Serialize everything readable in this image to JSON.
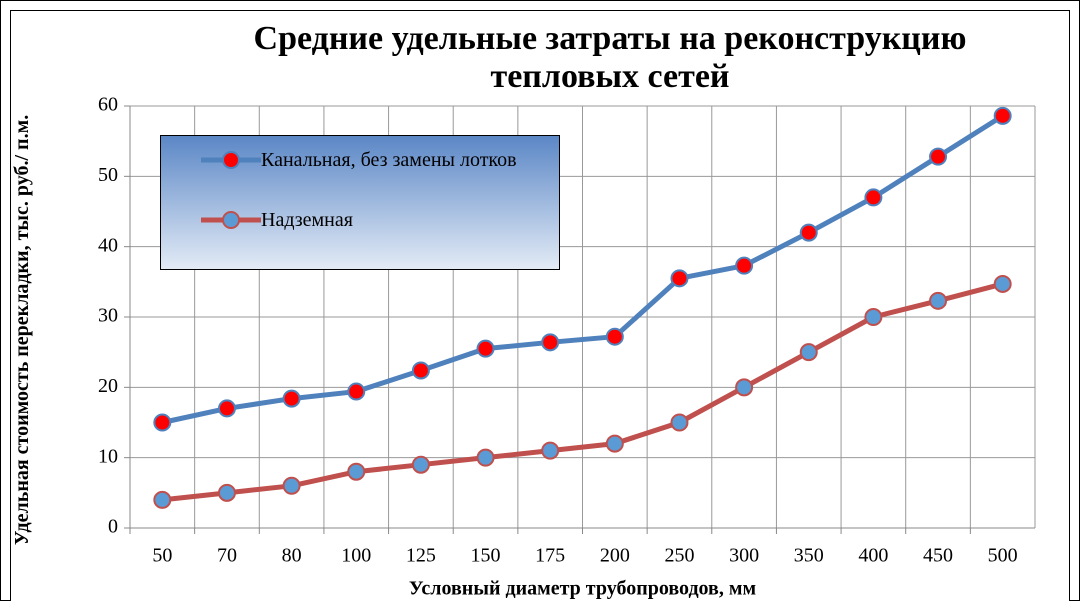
{
  "chart_data": {
    "type": "line",
    "title": "Средние удельные затраты на реконструкцию тепловых сетей",
    "x_label": "Условный диаметр трубопроводов, мм",
    "y_label": "Удельная стоимость перекладки, тыс. руб./ п.м.",
    "categories": [
      "50",
      "70",
      "80",
      "100",
      "125",
      "150",
      "175",
      "200",
      "250",
      "300",
      "350",
      "400",
      "450",
      "500"
    ],
    "series": [
      {
        "name": "Канальная, без замены лотков",
        "color": "#4f81bd",
        "marker_color": "#ff0000",
        "values": [
          15,
          17,
          18.4,
          19.4,
          22.4,
          25.5,
          26.4,
          27.2,
          35.5,
          37.3,
          42,
          47,
          52.8,
          58.6
        ]
      },
      {
        "name": "Надземная",
        "color": "#c0504d",
        "marker_color": "#5b9bd5",
        "values": [
          4,
          5,
          6,
          8,
          9,
          10,
          11,
          12,
          15,
          20,
          25,
          30,
          32.3,
          34.7
        ]
      }
    ],
    "ylim": [
      0,
      60
    ],
    "yticks": [
      0,
      10,
      20,
      30,
      40,
      50,
      60
    ],
    "grid": true,
    "legend": "upper left"
  }
}
